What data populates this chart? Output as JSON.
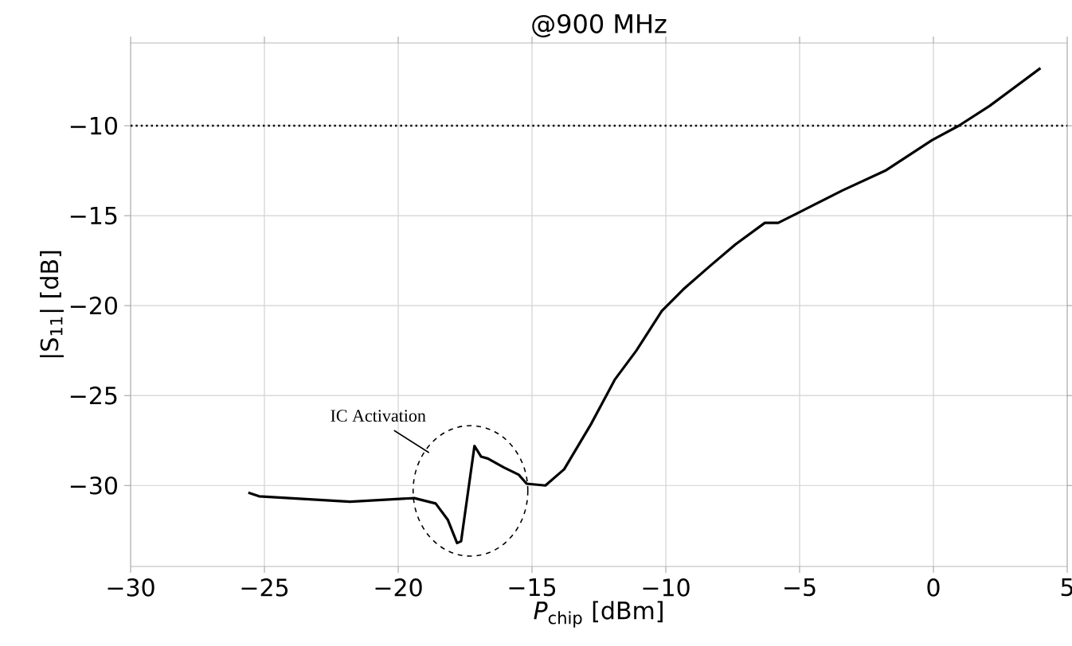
{
  "chart_data": {
    "type": "line",
    "title": "@900 MHz",
    "xlabel": "*P*$_{chip}$ [dBm]",
    "ylabel": "|S$_{11}$| [dB]",
    "xlim": [
      -30,
      5
    ],
    "ylim": [
      -34.5,
      -5.4
    ],
    "xticks": [
      {
        "value": -30,
        "label": "−30"
      },
      {
        "value": -25,
        "label": "−25"
      },
      {
        "value": -20,
        "label": "−20"
      },
      {
        "value": -15,
        "label": "−15"
      },
      {
        "value": -10,
        "label": "−10"
      },
      {
        "value": -5,
        "label": "−5"
      },
      {
        "value": 0,
        "label": "0"
      },
      {
        "value": 5,
        "label": "5"
      }
    ],
    "yticks": [
      {
        "value": -10,
        "label": "−10"
      },
      {
        "value": -15,
        "label": "−15"
      },
      {
        "value": -20,
        "label": "−20"
      },
      {
        "value": -25,
        "label": "−25"
      },
      {
        "value": -30,
        "label": "−30"
      }
    ],
    "grid": true,
    "marker": "none",
    "line_style": "solid",
    "series": [
      {
        "color": "#000000",
        "x": [
          -25.6,
          -25.2,
          -21.8,
          -19.4,
          -18.6,
          -18.15,
          -17.8,
          -17.65,
          -17.15,
          -16.9,
          -16.65,
          -16.05,
          -15.5,
          -15.2,
          -14.5,
          -13.8,
          -12.8,
          -11.9,
          -11.1,
          -10.15,
          -9.35,
          -8.35,
          -7.4,
          -6.3,
          -5.8,
          -5.0,
          -3.4,
          -1.8,
          -0.05,
          0.95,
          2.1,
          4.0
        ],
        "values": [
          -30.4,
          -30.6,
          -30.9,
          -30.7,
          -31.0,
          -31.9,
          -33.2,
          -33.1,
          -27.8,
          -28.4,
          -28.5,
          -29.0,
          -29.4,
          -29.9,
          -30.0,
          -29.1,
          -26.6,
          -24.1,
          -22.5,
          -20.3,
          -19.1,
          -17.8,
          -16.6,
          -15.4,
          -15.4,
          -14.8,
          -13.6,
          -12.5,
          -10.8,
          -10.0,
          -8.9,
          -6.8
        ]
      }
    ],
    "ref_lines": [
      {
        "axis": "y",
        "value": -10,
        "color": "#000000",
        "line_style": "dotted"
      }
    ],
    "annotations": [
      "IC Activation"
    ]
  }
}
